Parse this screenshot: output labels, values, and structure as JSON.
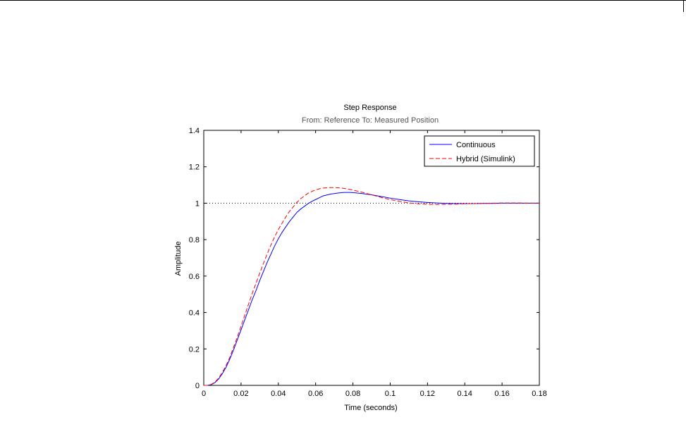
{
  "chart_data": {
    "type": "line",
    "title": "Step Response",
    "subtitle": "From: Reference  To: Measured Position",
    "xlabel": "Time (seconds)",
    "ylabel": "Amplitude",
    "xlim": [
      0,
      0.18
    ],
    "ylim": [
      0,
      1.4
    ],
    "x_ticks": [
      "0",
      "0.02",
      "0.04",
      "0.06",
      "0.08",
      "0.1",
      "0.12",
      "0.14",
      "0.16",
      "0.18"
    ],
    "y_ticks": [
      "0",
      "0.2",
      "0.4",
      "0.6",
      "0.8",
      "1",
      "1.2",
      "1.4"
    ],
    "x_tick_values": [
      0,
      0.02,
      0.04,
      0.06,
      0.08,
      0.1,
      0.12,
      0.14,
      0.16,
      0.18
    ],
    "y_tick_values": [
      0,
      0.2,
      0.4,
      0.6,
      0.8,
      1.0,
      1.2,
      1.4
    ],
    "reference_line": 1.0,
    "grid": false,
    "legend_position": "top-right",
    "series": [
      {
        "name": "Continuous",
        "color": "#0000ff",
        "style": "solid",
        "x": [
          0,
          0.002,
          0.004,
          0.006,
          0.008,
          0.01,
          0.012,
          0.014,
          0.016,
          0.018,
          0.02,
          0.022,
          0.024,
          0.026,
          0.028,
          0.03,
          0.032,
          0.034,
          0.036,
          0.038,
          0.04,
          0.042,
          0.044,
          0.046,
          0.048,
          0.05,
          0.052,
          0.054,
          0.056,
          0.058,
          0.06,
          0.062,
          0.064,
          0.066,
          0.068,
          0.07,
          0.072,
          0.074,
          0.076,
          0.078,
          0.08,
          0.085,
          0.09,
          0.095,
          0.1,
          0.105,
          0.11,
          0.115,
          0.12,
          0.125,
          0.13,
          0.135,
          0.14,
          0.145,
          0.15,
          0.155,
          0.16,
          0.165,
          0.17,
          0.175,
          0.18
        ],
        "y": [
          0,
          0.0,
          0.004,
          0.015,
          0.035,
          0.065,
          0.1,
          0.145,
          0.195,
          0.25,
          0.305,
          0.36,
          0.415,
          0.47,
          0.52,
          0.575,
          0.625,
          0.675,
          0.72,
          0.765,
          0.805,
          0.84,
          0.87,
          0.9,
          0.925,
          0.95,
          0.968,
          0.983,
          0.998,
          1.01,
          1.02,
          1.03,
          1.04,
          1.045,
          1.05,
          1.053,
          1.056,
          1.058,
          1.059,
          1.059,
          1.058,
          1.053,
          1.046,
          1.037,
          1.028,
          1.02,
          1.013,
          1.008,
          1.004,
          1.001,
          0.999,
          0.998,
          0.998,
          0.998,
          0.999,
          0.999,
          1.0,
          1.0,
          1.0,
          1.0,
          1.0
        ]
      },
      {
        "name": "Hybrid (Simulink)",
        "color": "#ff0000",
        "style": "dashed",
        "x": [
          0,
          0.002,
          0.004,
          0.006,
          0.008,
          0.01,
          0.012,
          0.014,
          0.016,
          0.018,
          0.02,
          0.022,
          0.024,
          0.026,
          0.028,
          0.03,
          0.032,
          0.034,
          0.036,
          0.038,
          0.04,
          0.042,
          0.044,
          0.046,
          0.048,
          0.05,
          0.052,
          0.054,
          0.056,
          0.058,
          0.06,
          0.062,
          0.064,
          0.066,
          0.068,
          0.07,
          0.072,
          0.074,
          0.076,
          0.078,
          0.08,
          0.085,
          0.09,
          0.095,
          0.1,
          0.105,
          0.11,
          0.115,
          0.12,
          0.125,
          0.13,
          0.135,
          0.14,
          0.145,
          0.15,
          0.155,
          0.16,
          0.165,
          0.17,
          0.175,
          0.18
        ],
        "y": [
          0,
          0.0,
          0.005,
          0.018,
          0.04,
          0.072,
          0.11,
          0.155,
          0.21,
          0.265,
          0.325,
          0.385,
          0.445,
          0.505,
          0.56,
          0.615,
          0.67,
          0.72,
          0.77,
          0.815,
          0.855,
          0.89,
          0.925,
          0.955,
          0.98,
          1.005,
          1.025,
          1.04,
          1.055,
          1.065,
          1.073,
          1.079,
          1.083,
          1.085,
          1.086,
          1.086,
          1.085,
          1.083,
          1.08,
          1.076,
          1.072,
          1.06,
          1.046,
          1.032,
          1.02,
          1.01,
          1.002,
          0.997,
          0.994,
          0.993,
          0.994,
          0.995,
          0.997,
          0.998,
          0.999,
          1.0,
          1.001,
          1.001,
          1.001,
          1.0,
          1.0
        ]
      }
    ]
  }
}
